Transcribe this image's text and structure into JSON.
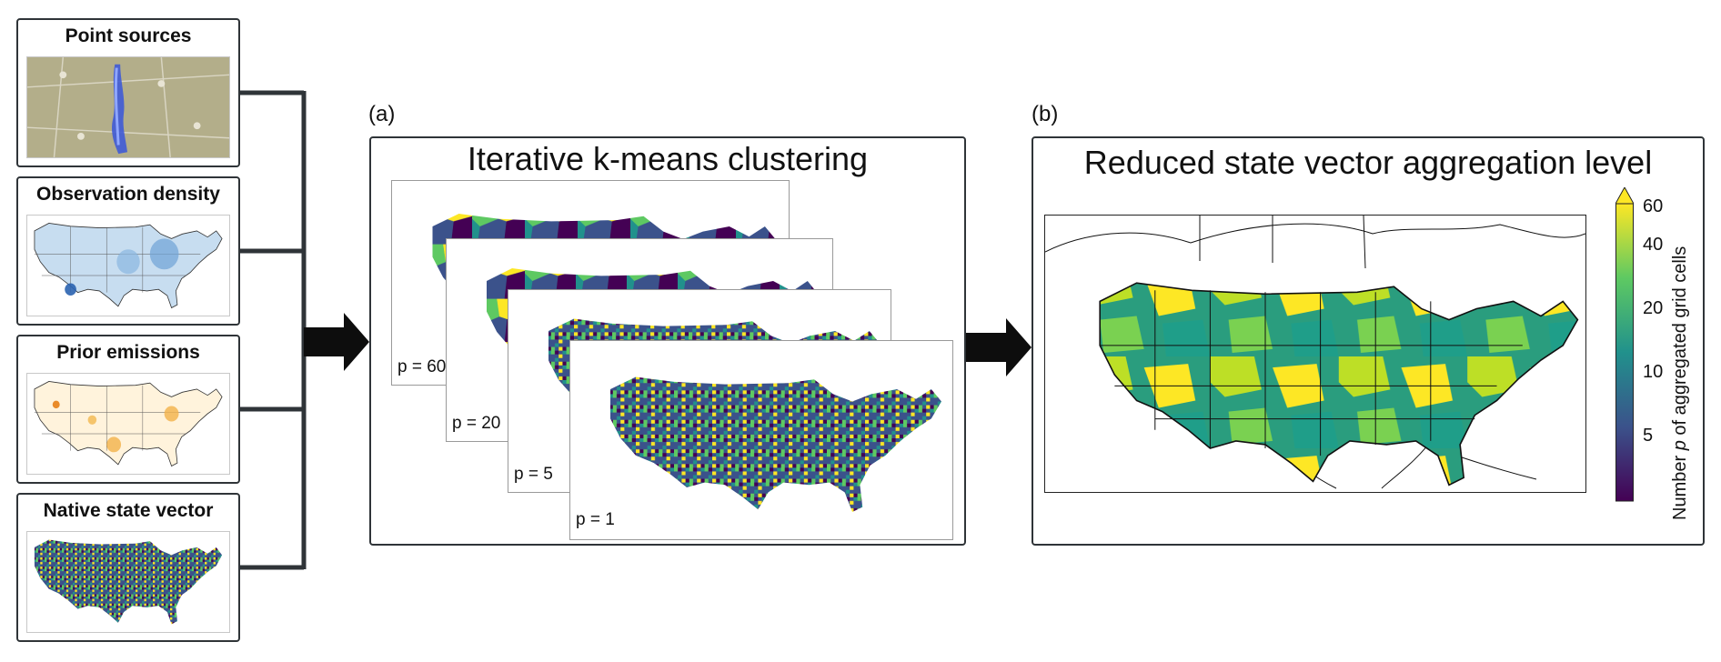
{
  "inputs": [
    {
      "title": "Point sources"
    },
    {
      "title": "Observation density"
    },
    {
      "title": "Prior emissions"
    },
    {
      "title": "Native state vector"
    }
  ],
  "panel_a": {
    "letter": "(a)",
    "title": "Iterative k-means clustering",
    "cards": [
      {
        "label": "p = 60"
      },
      {
        "label": "p = 20"
      },
      {
        "label": "p = 5"
      },
      {
        "label": "p = 1"
      }
    ]
  },
  "panel_b": {
    "letter": "(b)",
    "title": "Reduced state vector aggregation level",
    "colorbar": {
      "ticks": [
        "60",
        "40",
        "20",
        "10",
        "5"
      ],
      "label_prefix": "Number ",
      "label_var": "p",
      "label_suffix": " of aggregated grid cells",
      "colors": [
        "#440154",
        "#3b528b",
        "#21918c",
        "#5ec962",
        "#fde725"
      ]
    }
  }
}
